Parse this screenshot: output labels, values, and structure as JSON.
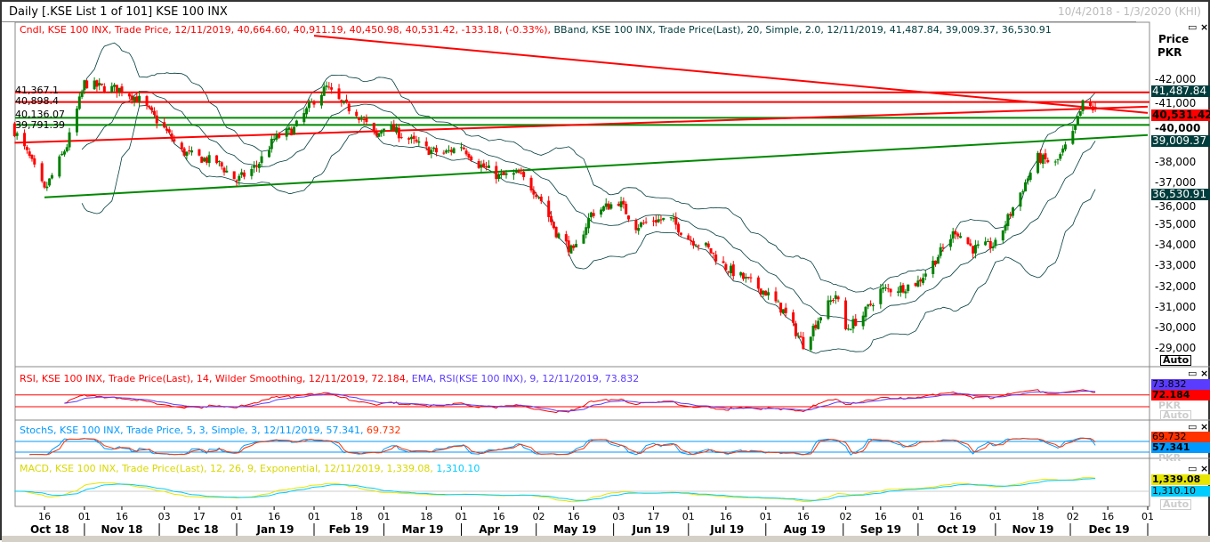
{
  "window": {
    "title": "Daily [.KSE List 1 of 101] KSE 100 INX",
    "date_range": "10/4/2018 - 1/3/2020 (KHI)",
    "maximize_icon": "maximize-icon",
    "close_icon": "close-icon"
  },
  "legend": {
    "candle": "Cndl, KSE 100 INX, Trade Price, 12/11/2019, 40,664.60, 40,911.19, 40,450.98, 40,531.42, -133.18, (-0.33%),",
    "bband": " BBand, KSE 100 INX, Trade Price(Last),  20, Simple, 2.0, 12/11/2019, 41,487.84, 39,009.37, 36,530.91",
    "rsi": "RSI, KSE 100 INX, Trade Price(Last),  14, Wilder Smoothing, 12/11/2019, 72.184,",
    "rsi_ema": " EMA, RSI(KSE 100 INX),  9, 12/11/2019, 73.832",
    "stoch_a": "StochS, KSE 100 INX, Trade Price,  5, 3, Simple, 3, 12/11/2019, 57.341,",
    "stoch_b": " 69.732",
    "macd_a": "MACD, KSE 100 INX, Trade Price(Last),  12, 26, 9, Exponential, 12/11/2019, 1,339.08,",
    "macd_b": " 1,310.10"
  },
  "scale": {
    "header1": "Price",
    "header2": "PKR",
    "ticks": [
      "42,000",
      "41,000",
      "40,000",
      "38,000",
      "37,000",
      "36,000",
      "35,000",
      "34,000",
      "33,000",
      "32,000",
      "31,000",
      "30,000",
      "29,000"
    ],
    "auto": "Auto",
    "ghost_pkr": "PKR"
  },
  "tags": {
    "bb_upper": "41,487.84",
    "last": "40,531.42",
    "bb_mid": "39,009.37",
    "bb_lower": "36,530.91",
    "rsi_ema": "73.832",
    "rsi": "72.184",
    "stoch_d": "69.732",
    "stoch_k": "57.341",
    "macd": "1,339.08",
    "signal": "1,310.10"
  },
  "level_labels": [
    "41,367.1",
    "40,898.4",
    "40,136.07",
    "39,791.39"
  ],
  "colors": {
    "up": "#008000",
    "down": "#ff0000",
    "bband": "#003c3c",
    "rsi": "#ff0000",
    "rsi_ema": "#5a3cff",
    "stoch_k": "#0099ff",
    "stoch_d": "#ff3300",
    "macd": "#e6e600",
    "signal": "#00ccff",
    "tag_teal": "#003c3c"
  },
  "x_axis": {
    "day_ticks": [
      [
        "2018-10-16",
        "16"
      ],
      [
        "2018-11-01",
        "01"
      ],
      [
        "2018-11-16",
        "16"
      ],
      [
        "2018-12-03",
        "03"
      ],
      [
        "2018-12-17",
        "17"
      ],
      [
        "2019-01-01",
        "01"
      ],
      [
        "2019-01-16",
        "16"
      ],
      [
        "2019-02-01",
        "01"
      ],
      [
        "2019-02-18",
        "18"
      ],
      [
        "2019-03-01",
        "01"
      ],
      [
        "2019-03-18",
        "18"
      ],
      [
        "2019-04-01",
        "01"
      ],
      [
        "2019-04-16",
        "16"
      ],
      [
        "2019-05-02",
        "02"
      ],
      [
        "2019-05-16",
        "16"
      ],
      [
        "2019-06-03",
        "03"
      ],
      [
        "2019-06-17",
        "17"
      ],
      [
        "2019-07-01",
        "01"
      ],
      [
        "2019-07-16",
        "16"
      ],
      [
        "2019-08-01",
        "01"
      ],
      [
        "2019-08-16",
        "16"
      ],
      [
        "2019-09-02",
        "02"
      ],
      [
        "2019-09-16",
        "16"
      ],
      [
        "2019-10-01",
        "01"
      ],
      [
        "2019-10-16",
        "16"
      ],
      [
        "2019-11-01",
        "01"
      ],
      [
        "2019-11-18",
        "18"
      ],
      [
        "2019-12-02",
        "02"
      ],
      [
        "2019-12-16",
        "16"
      ],
      [
        "2020-01-01",
        "01"
      ]
    ],
    "months": [
      "Oct 18",
      "Nov 18",
      "Dec 18",
      "Jan 19",
      "Feb 19",
      "Mar 19",
      "Apr 19",
      "May 19",
      "Jun 19",
      "Jul 19",
      "Aug 19",
      "Sep 19",
      "Oct 19",
      "Nov 19",
      "Dec 19"
    ]
  },
  "chart_data": {
    "type": "candlestick",
    "title": "Daily [.KSE List 1 of 101] KSE 100 INX",
    "ylabel": "Price PKR",
    "ylim": [
      28500,
      43500
    ],
    "xlim": [
      "2018-10-04",
      "2020-01-03"
    ],
    "close_approx": [
      [
        "2018-10-04",
        39500
      ],
      [
        "2018-10-10",
        38200
      ],
      [
        "2018-10-16",
        36600
      ],
      [
        "2018-10-25",
        38800
      ],
      [
        "2018-11-01",
        41800
      ],
      [
        "2018-11-08",
        41600
      ],
      [
        "2018-11-16",
        41500
      ],
      [
        "2018-11-23",
        41000
      ],
      [
        "2018-12-03",
        39600
      ],
      [
        "2018-12-10",
        38500
      ],
      [
        "2018-12-17",
        38200
      ],
      [
        "2018-12-24",
        38000
      ],
      [
        "2019-01-01",
        37100
      ],
      [
        "2019-01-09",
        37800
      ],
      [
        "2019-01-16",
        39100
      ],
      [
        "2019-01-24",
        39600
      ],
      [
        "2019-02-01",
        41000
      ],
      [
        "2019-02-06",
        41600
      ],
      [
        "2019-02-12",
        40800
      ],
      [
        "2019-02-18",
        40400
      ],
      [
        "2019-02-26",
        39200
      ],
      [
        "2019-03-01",
        39800
      ],
      [
        "2019-03-11",
        39100
      ],
      [
        "2019-03-18",
        38600
      ],
      [
        "2019-03-25",
        38400
      ],
      [
        "2019-04-01",
        38800
      ],
      [
        "2019-04-08",
        37900
      ],
      [
        "2019-04-16",
        37300
      ],
      [
        "2019-04-24",
        37400
      ],
      [
        "2019-05-02",
        36400
      ],
      [
        "2019-05-09",
        34600
      ],
      [
        "2019-05-16",
        33600
      ],
      [
        "2019-05-23",
        35500
      ],
      [
        "2019-06-03",
        36100
      ],
      [
        "2019-06-10",
        34900
      ],
      [
        "2019-06-17",
        35200
      ],
      [
        "2019-06-24",
        35200
      ],
      [
        "2019-07-01",
        34300
      ],
      [
        "2019-07-08",
        33900
      ],
      [
        "2019-07-16",
        32900
      ],
      [
        "2019-07-24",
        32300
      ],
      [
        "2019-08-01",
        31700
      ],
      [
        "2019-08-08",
        30800
      ],
      [
        "2019-08-16",
        29200
      ],
      [
        "2019-08-23",
        30600
      ],
      [
        "2019-08-29",
        31600
      ],
      [
        "2019-09-02",
        29900
      ],
      [
        "2019-09-09",
        30600
      ],
      [
        "2019-09-16",
        31800
      ],
      [
        "2019-09-24",
        31900
      ],
      [
        "2019-10-01",
        32200
      ],
      [
        "2019-10-08",
        33300
      ],
      [
        "2019-10-16",
        34700
      ],
      [
        "2019-10-23",
        33800
      ],
      [
        "2019-11-01",
        34000
      ],
      [
        "2019-11-08",
        35800
      ],
      [
        "2019-11-18",
        38200
      ],
      [
        "2019-11-25",
        37900
      ],
      [
        "2019-12-02",
        39300
      ],
      [
        "2019-12-06",
        40800
      ],
      [
        "2019-12-11",
        40531.42
      ]
    ],
    "last_candle": {
      "date": "2019-12-11",
      "open": 40664.6,
      "high": 40911.19,
      "low": 40450.98,
      "close": 40531.42,
      "change": -133.18,
      "change_pct": -0.33
    },
    "bollinger": {
      "period": 20,
      "type": "Simple",
      "stdev": 2.0,
      "upper": 41487.84,
      "middle": 39009.37,
      "lower": 36530.91
    },
    "horizontal_levels": [
      {
        "value": 41367.1,
        "color": "red"
      },
      {
        "value": 40898.4,
        "color": "red"
      },
      {
        "value": 40136.07,
        "color": "green"
      },
      {
        "value": 39791.39,
        "color": "green"
      }
    ],
    "trendlines": [
      {
        "color": "red",
        "from": [
          "2019-02-01",
          44100
        ],
        "to": [
          "2020-01-01",
          40370
        ]
      },
      {
        "color": "red",
        "from": [
          "2018-10-04",
          38930
        ],
        "to": [
          "2020-01-01",
          40670
        ]
      },
      {
        "color": "green",
        "from": [
          "2018-10-16",
          36290
        ],
        "to": [
          "2020-01-01",
          39300
        ]
      }
    ],
    "indicators": {
      "rsi": {
        "period": 14,
        "value": 72.184,
        "ema_period": 9,
        "ema": 73.832
      },
      "stoch": {
        "k": 57.341,
        "d": 69.732,
        "params": [
          5,
          3,
          3
        ]
      },
      "macd": {
        "fast": 12,
        "slow": 26,
        "signal": 9,
        "macd": 1339.08,
        "signal_value": 1310.1
      }
    }
  }
}
